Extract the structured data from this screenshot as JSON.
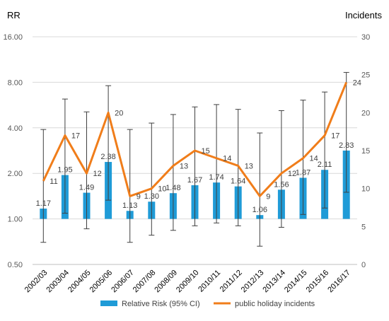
{
  "chart_data": {
    "type": "bar",
    "categories": [
      "2002/03",
      "2003/04",
      "2004/05",
      "2005/06",
      "2006/07",
      "2007/08",
      "2008/09",
      "2009/10",
      "2010/11",
      "2011/12",
      "2012/13",
      "2013/14",
      "2014/15",
      "2015/16",
      "2016/17"
    ],
    "y_left_label": "RR",
    "y_right_label": "Incidents",
    "y_left_scale": "log2",
    "y_left_ticks": [
      "0.50",
      "1.00",
      "2.00",
      "4.00",
      "8.00",
      "16.00"
    ],
    "y_left_tick_values": [
      0.5,
      1,
      2,
      4,
      8,
      16
    ],
    "y_right_ticks": [
      "0",
      "5",
      "10",
      "15",
      "20",
      "25",
      "30"
    ],
    "y_right_tick_values": [
      0,
      5,
      10,
      15,
      20,
      25,
      30
    ],
    "ylim_left": [
      0.5,
      16
    ],
    "ylim_right": [
      0,
      30
    ],
    "grid": true,
    "legend_position": "bottom",
    "series": [
      {
        "name": "Relative Risk (95% CI)",
        "kind": "bar",
        "axis": "left",
        "color": "#1F9BD7",
        "values": [
          1.17,
          1.95,
          1.49,
          2.38,
          1.13,
          1.3,
          1.48,
          1.67,
          1.74,
          1.64,
          1.06,
          1.56,
          1.87,
          2.11,
          2.83
        ],
        "labels": [
          "1.17",
          "1.95",
          "1.49",
          "2.38",
          "1.13",
          "1.30",
          "1.48",
          "1.67",
          "1.74",
          "1.64",
          "1.06",
          "1.56",
          "1.87",
          "2.11",
          "2.83"
        ],
        "ci_low": [
          0.7,
          1.09,
          0.86,
          1.33,
          0.7,
          0.78,
          0.84,
          0.9,
          0.94,
          0.9,
          0.66,
          0.88,
          1.07,
          1.18,
          1.5
        ],
        "ci_high": [
          3.9,
          6.2,
          5.1,
          7.6,
          3.9,
          4.3,
          4.9,
          5.5,
          5.7,
          5.3,
          3.7,
          5.2,
          6.1,
          6.9,
          9.3
        ]
      },
      {
        "name": "public holiday incidents",
        "kind": "line",
        "axis": "right",
        "color": "#F07D1A",
        "values": [
          11,
          17,
          12,
          20,
          9,
          10,
          13,
          15,
          14,
          13,
          9,
          12,
          14,
          17,
          24
        ],
        "labels": [
          "11",
          "17",
          "12",
          "20",
          "9",
          "10",
          "13",
          "15",
          "14",
          "13",
          "9",
          "12",
          "14",
          "17",
          "24"
        ]
      }
    ]
  }
}
